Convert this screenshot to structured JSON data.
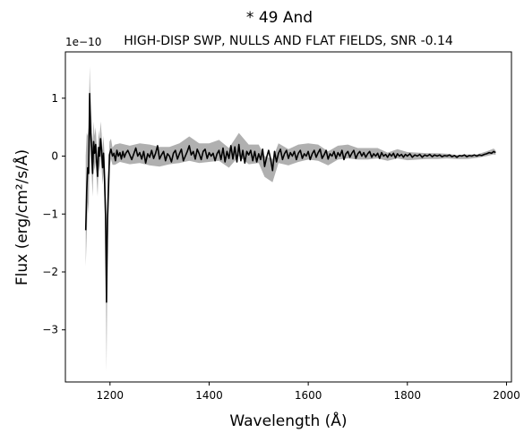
{
  "chart_data": {
    "type": "line",
    "title": "*  49 And",
    "subtitle": "HIGH-DISP SWP, NULLS AND FLAT FIELDS, SNR -0.14",
    "xlabel": "Wavelength (Å)",
    "ylabel": "Flux (erg/cm²/s/Å)",
    "y_offset_label": "1e−10",
    "xlim": [
      1110,
      2010
    ],
    "ylim": [
      -3.9,
      1.8
    ],
    "xticks": [
      1200,
      1400,
      1600,
      1800,
      2000
    ],
    "yticks": [
      -3,
      -2,
      -1,
      0,
      1
    ],
    "xtick_labels": [
      "1200",
      "1400",
      "1600",
      "1800",
      "2000"
    ],
    "ytick_labels": [
      "−3",
      "−2",
      "−1",
      "0",
      "1"
    ],
    "grid": false,
    "colors": {
      "flux": "#000000",
      "error_band": "#b0b0b0"
    },
    "series": [
      {
        "values": [
          [
            1151,
            -1.28
          ],
          [
            1153,
            -0.6
          ],
          [
            1155,
            -0.2
          ],
          [
            1157,
            -0.3
          ],
          [
            1159,
            1.08
          ],
          [
            1161,
            0.4
          ],
          [
            1163,
            0.15
          ],
          [
            1165,
            -0.3
          ],
          [
            1167,
            0.25
          ],
          [
            1169,
            0.05
          ],
          [
            1171,
            0.2
          ],
          [
            1173,
            -0.1
          ],
          [
            1175,
            -0.35
          ],
          [
            1177,
            0.15
          ],
          [
            1179,
            0.0
          ],
          [
            1181,
            0.3
          ],
          [
            1183,
            0.1
          ],
          [
            1185,
            -0.2
          ],
          [
            1187,
            0.05
          ],
          [
            1189,
            -0.4
          ],
          [
            1191,
            -1.0
          ],
          [
            1193,
            -2.52
          ],
          [
            1195,
            -1.1
          ],
          [
            1197,
            -0.6
          ],
          [
            1199,
            0.02
          ],
          [
            1202,
            0.12
          ],
          [
            1205,
            0.0
          ],
          [
            1208,
            0.05
          ],
          [
            1211,
            -0.08
          ],
          [
            1214,
            0.1
          ],
          [
            1217,
            0.0
          ],
          [
            1220,
            0.06
          ],
          [
            1223,
            -0.05
          ],
          [
            1226,
            0.08
          ],
          [
            1229,
            -0.02
          ],
          [
            1232,
            0.05
          ],
          [
            1236,
            0.1
          ],
          [
            1240,
            0.02
          ],
          [
            1244,
            -0.06
          ],
          [
            1248,
            0.04
          ],
          [
            1252,
            0.14
          ],
          [
            1256,
            0.0
          ],
          [
            1260,
            0.06
          ],
          [
            1264,
            -0.05
          ],
          [
            1268,
            0.08
          ],
          [
            1272,
            -0.12
          ],
          [
            1276,
            0.04
          ],
          [
            1280,
            -0.02
          ],
          [
            1284,
            0.1
          ],
          [
            1288,
            -0.04
          ],
          [
            1292,
            0.05
          ],
          [
            1296,
            0.18
          ],
          [
            1300,
            -0.05
          ],
          [
            1304,
            0.02
          ],
          [
            1308,
            0.08
          ],
          [
            1312,
            -0.08
          ],
          [
            1316,
            0.04
          ],
          [
            1320,
            0.0
          ],
          [
            1324,
            -0.1
          ],
          [
            1328,
            0.05
          ],
          [
            1332,
            0.1
          ],
          [
            1336,
            -0.05
          ],
          [
            1340,
            0.04
          ],
          [
            1344,
            0.12
          ],
          [
            1348,
            -0.08
          ],
          [
            1352,
            0.0
          ],
          [
            1356,
            0.08
          ],
          [
            1360,
            0.18
          ],
          [
            1364,
            0.02
          ],
          [
            1368,
            0.08
          ],
          [
            1372,
            -0.05
          ],
          [
            1376,
            0.12
          ],
          [
            1380,
            0.04
          ],
          [
            1384,
            -0.06
          ],
          [
            1388,
            0.08
          ],
          [
            1392,
            0.12
          ],
          [
            1396,
            -0.04
          ],
          [
            1400,
            0.06
          ],
          [
            1404,
            0.0
          ],
          [
            1408,
            0.05
          ],
          [
            1412,
            -0.08
          ],
          [
            1416,
            0.04
          ],
          [
            1420,
            0.1
          ],
          [
            1424,
            -0.06
          ],
          [
            1428,
            0.14
          ],
          [
            1432,
            -0.1
          ],
          [
            1436,
            0.08
          ],
          [
            1440,
            -0.04
          ],
          [
            1444,
            0.18
          ],
          [
            1448,
            -0.05
          ],
          [
            1452,
            0.16
          ],
          [
            1456,
            -0.1
          ],
          [
            1460,
            0.2
          ],
          [
            1464,
            -0.08
          ],
          [
            1468,
            0.1
          ],
          [
            1472,
            -0.12
          ],
          [
            1476,
            0.08
          ],
          [
            1480,
            0.02
          ],
          [
            1484,
            0.1
          ],
          [
            1488,
            -0.08
          ],
          [
            1492,
            0.08
          ],
          [
            1496,
            -0.1
          ],
          [
            1500,
            0.04
          ],
          [
            1504,
            -0.06
          ],
          [
            1508,
            0.12
          ],
          [
            1512,
            -0.18
          ],
          [
            1516,
            -0.02
          ],
          [
            1520,
            0.1
          ],
          [
            1524,
            -0.05
          ],
          [
            1528,
            -0.25
          ],
          [
            1532,
            0.08
          ],
          [
            1536,
            -0.1
          ],
          [
            1540,
            0.05
          ],
          [
            1544,
            0.12
          ],
          [
            1548,
            -0.06
          ],
          [
            1552,
            0.04
          ],
          [
            1556,
            0.1
          ],
          [
            1560,
            -0.04
          ],
          [
            1564,
            0.06
          ],
          [
            1568,
            0.0
          ],
          [
            1572,
            0.08
          ],
          [
            1576,
            -0.06
          ],
          [
            1580,
            0.05
          ],
          [
            1584,
            0.1
          ],
          [
            1588,
            -0.04
          ],
          [
            1592,
            0.04
          ],
          [
            1596,
            0.0
          ],
          [
            1600,
            0.08
          ],
          [
            1604,
            -0.06
          ],
          [
            1608,
            0.04
          ],
          [
            1612,
            0.1
          ],
          [
            1616,
            -0.02
          ],
          [
            1620,
            0.06
          ],
          [
            1624,
            0.12
          ],
          [
            1628,
            -0.04
          ],
          [
            1632,
            0.02
          ],
          [
            1636,
            0.1
          ],
          [
            1640,
            -0.05
          ],
          [
            1644,
            0.04
          ],
          [
            1648,
            0.0
          ],
          [
            1652,
            0.08
          ],
          [
            1656,
            -0.04
          ],
          [
            1660,
            0.06
          ],
          [
            1664,
            0.0
          ],
          [
            1668,
            0.1
          ],
          [
            1672,
            -0.06
          ],
          [
            1676,
            0.04
          ],
          [
            1680,
            0.08
          ],
          [
            1684,
            -0.02
          ],
          [
            1688,
            0.05
          ],
          [
            1692,
            0.1
          ],
          [
            1696,
            -0.04
          ],
          [
            1700,
            0.04
          ],
          [
            1704,
            0.08
          ],
          [
            1708,
            0.0
          ],
          [
            1712,
            0.06
          ],
          [
            1716,
            -0.02
          ],
          [
            1720,
            0.04
          ],
          [
            1724,
            0.08
          ],
          [
            1728,
            -0.02
          ],
          [
            1732,
            0.04
          ],
          [
            1736,
            0.0
          ],
          [
            1740,
            0.05
          ],
          [
            1744,
            -0.04
          ],
          [
            1748,
            0.06
          ],
          [
            1752,
            0.0
          ],
          [
            1756,
            0.03
          ],
          [
            1760,
            -0.02
          ],
          [
            1764,
            0.04
          ],
          [
            1768,
            0.0
          ],
          [
            1772,
            0.05
          ],
          [
            1776,
            -0.03
          ],
          [
            1780,
            0.04
          ],
          [
            1784,
            0.0
          ],
          [
            1788,
            0.03
          ],
          [
            1792,
            -0.02
          ],
          [
            1796,
            0.03
          ],
          [
            1800,
            0.0
          ],
          [
            1805,
            0.04
          ],
          [
            1810,
            -0.02
          ],
          [
            1815,
            0.02
          ],
          [
            1820,
            0.0
          ],
          [
            1825,
            0.03
          ],
          [
            1830,
            -0.02
          ],
          [
            1835,
            0.02
          ],
          [
            1840,
            0.0
          ],
          [
            1845,
            0.03
          ],
          [
            1850,
            -0.01
          ],
          [
            1855,
            0.02
          ],
          [
            1860,
            0.0
          ],
          [
            1865,
            0.02
          ],
          [
            1870,
            -0.01
          ],
          [
            1875,
            0.01
          ],
          [
            1880,
            0.0
          ],
          [
            1885,
            0.02
          ],
          [
            1890,
            -0.01
          ],
          [
            1895,
            0.01
          ],
          [
            1900,
            -0.02
          ],
          [
            1905,
            0.01
          ],
          [
            1910,
            0.0
          ],
          [
            1915,
            0.02
          ],
          [
            1920,
            -0.01
          ],
          [
            1925,
            0.01
          ],
          [
            1930,
            0.0
          ],
          [
            1935,
            0.02
          ],
          [
            1940,
            0.0
          ],
          [
            1945,
            0.02
          ],
          [
            1950,
            0.01
          ],
          [
            1955,
            0.03
          ],
          [
            1960,
            0.04
          ],
          [
            1965,
            0.06
          ],
          [
            1970,
            0.05
          ],
          [
            1974,
            0.08
          ],
          [
            1978,
            0.06
          ]
        ],
        "error": [
          [
            1151,
            -1.9,
            0.0
          ],
          [
            1153,
            -1.4,
            0.4
          ],
          [
            1155,
            -0.8,
            0.35
          ],
          [
            1157,
            -1.0,
            0.5
          ],
          [
            1159,
            0.3,
            1.55
          ],
          [
            1161,
            -0.1,
            0.9
          ],
          [
            1163,
            -0.3,
            0.6
          ],
          [
            1165,
            -0.7,
            0.2
          ],
          [
            1167,
            -0.1,
            0.6
          ],
          [
            1169,
            -0.25,
            0.35
          ],
          [
            1171,
            -0.1,
            0.5
          ],
          [
            1173,
            -0.4,
            0.2
          ],
          [
            1175,
            -0.7,
            0.0
          ],
          [
            1177,
            -0.15,
            0.45
          ],
          [
            1179,
            -0.3,
            0.3
          ],
          [
            1181,
            0.0,
            0.6
          ],
          [
            1183,
            -0.2,
            0.4
          ],
          [
            1185,
            -0.5,
            0.1
          ],
          [
            1187,
            -0.25,
            0.35
          ],
          [
            1189,
            -0.8,
            0.0
          ],
          [
            1191,
            -1.6,
            -0.4
          ],
          [
            1193,
            -3.72,
            -1.3
          ],
          [
            1195,
            -1.8,
            -0.4
          ],
          [
            1197,
            -1.0,
            -0.2
          ],
          [
            1199,
            -0.2,
            0.25
          ],
          [
            1202,
            -0.05,
            0.3
          ],
          [
            1205,
            -0.15,
            0.15
          ],
          [
            1210,
            -0.15,
            0.2
          ],
          [
            1220,
            -0.1,
            0.22
          ],
          [
            1240,
            -0.14,
            0.18
          ],
          [
            1260,
            -0.12,
            0.22
          ],
          [
            1280,
            -0.16,
            0.2
          ],
          [
            1300,
            -0.18,
            0.16
          ],
          [
            1320,
            -0.14,
            0.16
          ],
          [
            1340,
            -0.12,
            0.22
          ],
          [
            1360,
            -0.08,
            0.34
          ],
          [
            1380,
            -0.12,
            0.22
          ],
          [
            1400,
            -0.1,
            0.22
          ],
          [
            1420,
            -0.08,
            0.28
          ],
          [
            1440,
            -0.2,
            0.14
          ],
          [
            1460,
            0.0,
            0.4
          ],
          [
            1480,
            -0.14,
            0.2
          ],
          [
            1500,
            -0.12,
            0.2
          ],
          [
            1512,
            -0.36,
            0.0
          ],
          [
            1528,
            -0.45,
            -0.05
          ],
          [
            1540,
            -0.12,
            0.22
          ],
          [
            1560,
            -0.16,
            0.12
          ],
          [
            1580,
            -0.1,
            0.2
          ],
          [
            1600,
            -0.06,
            0.22
          ],
          [
            1620,
            -0.08,
            0.2
          ],
          [
            1640,
            -0.16,
            0.08
          ],
          [
            1660,
            -0.06,
            0.18
          ],
          [
            1680,
            -0.04,
            0.2
          ],
          [
            1700,
            -0.06,
            0.14
          ],
          [
            1720,
            -0.06,
            0.14
          ],
          [
            1740,
            -0.04,
            0.14
          ],
          [
            1760,
            -0.08,
            0.06
          ],
          [
            1780,
            -0.04,
            0.12
          ],
          [
            1800,
            -0.07,
            0.07
          ],
          [
            1820,
            -0.06,
            0.06
          ],
          [
            1840,
            -0.05,
            0.05
          ],
          [
            1860,
            -0.05,
            0.05
          ],
          [
            1880,
            -0.04,
            0.04
          ],
          [
            1900,
            -0.05,
            0.02
          ],
          [
            1920,
            -0.05,
            0.03
          ],
          [
            1940,
            -0.03,
            0.03
          ],
          [
            1960,
            0.0,
            0.08
          ],
          [
            1974,
            0.03,
            0.13
          ],
          [
            1978,
            0.02,
            0.1
          ]
        ]
      }
    ]
  }
}
